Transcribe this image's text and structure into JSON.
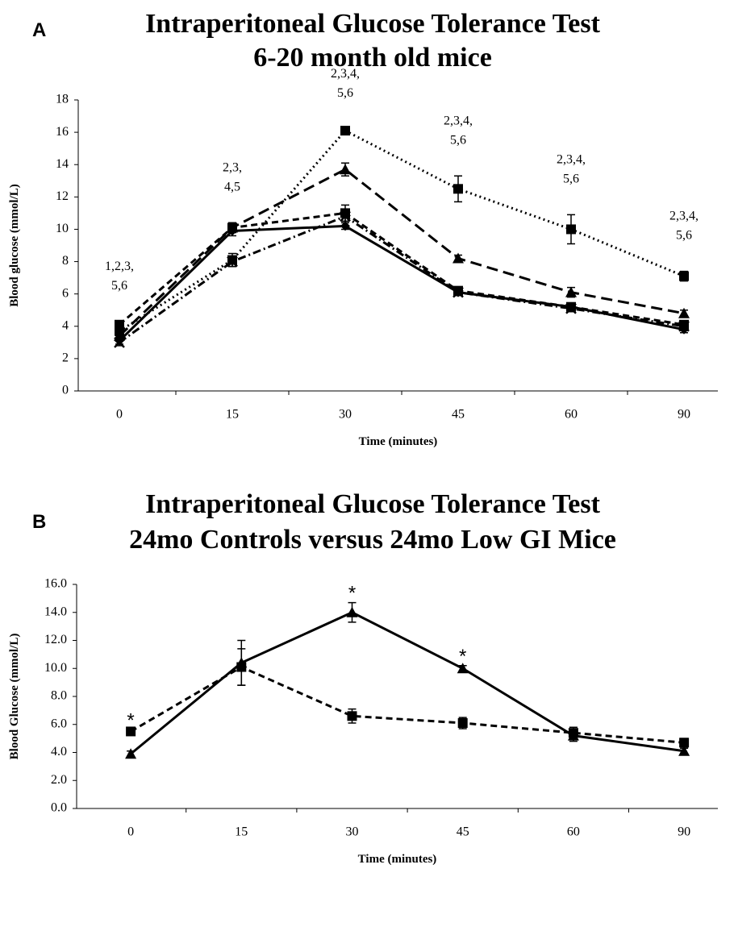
{
  "chart_data": [
    {
      "type": "line",
      "panel_label": "A",
      "title": "Intraperitoneal Glucose Tolerance Test",
      "subtitle": "6-20 month old mice",
      "x_label": "Time (minutes)",
      "y_label": "Blood glucose (mmol/L)",
      "categories": [
        "0",
        "15",
        "30",
        "45",
        "60",
        "90"
      ],
      "ylim": [
        0,
        18
      ],
      "yticks": [
        0,
        2,
        4,
        6,
        8,
        10,
        12,
        14,
        16,
        18
      ],
      "series": [
        {
          "color": "#000000",
          "line_style": "dotted",
          "marker": "square",
          "values": [
            3.7,
            8.1,
            16.1,
            12.5,
            10.0,
            7.1
          ],
          "errors": [
            0.3,
            0.4,
            0.1,
            0.8,
            0.9,
            0.3
          ]
        },
        {
          "color": "#000000",
          "line_style": "long-dash",
          "marker": "triangle",
          "values": [
            3.4,
            10.1,
            13.7,
            8.2,
            6.1,
            4.8
          ],
          "errors": [
            0.2,
            0.3,
            0.4,
            0.2,
            0.3,
            0.2
          ]
        },
        {
          "color": "#000000",
          "line_style": "dash",
          "marker": "square",
          "values": [
            4.1,
            10.1,
            11.0,
            6.2,
            5.2,
            4.1
          ],
          "errors": [
            0.2,
            0.3,
            0.5,
            0.2,
            0.2,
            0.2
          ]
        },
        {
          "color": "#000000",
          "line_style": "dash-dot",
          "marker": "x",
          "values": [
            3.0,
            8.0,
            10.8,
            6.1,
            5.1,
            4.0
          ],
          "errors": [
            0.2,
            0.3,
            0.3,
            0.2,
            0.2,
            0.2
          ]
        },
        {
          "color": "#000000",
          "line_style": "solid",
          "marker": "diamond",
          "values": [
            3.1,
            9.9,
            10.2,
            6.1,
            5.2,
            3.8
          ],
          "errors": [
            0.2,
            0.3,
            0.2,
            0.2,
            0.2,
            0.2
          ]
        }
      ],
      "annotations": [
        [
          "1,2,3,",
          "5,6"
        ],
        [
          "2,3,",
          "4,5"
        ],
        [
          "2,3,4,",
          "5,6"
        ],
        [
          "2,3,4,",
          "5,6"
        ],
        [
          "2,3,4,",
          "5,6"
        ],
        [
          "2,3,4,",
          "5,6"
        ]
      ]
    },
    {
      "type": "line",
      "panel_label": "B",
      "title": "Intraperitoneal Glucose Tolerance Test",
      "subtitle": "24mo Controls versus 24mo Low GI Mice",
      "x_label": "Time (minutes)",
      "y_label": "Blood Glucose (mmol/L)",
      "categories": [
        "0",
        "15",
        "30",
        "45",
        "60",
        "90"
      ],
      "ylim": [
        0,
        16
      ],
      "yticks": [
        {
          "value": 0,
          "label": "0.0"
        },
        {
          "value": 2,
          "label": "2.0"
        },
        {
          "value": 4,
          "label": "4.0"
        },
        {
          "value": 6,
          "label": "6.0"
        },
        {
          "value": 8,
          "label": "8.0"
        },
        {
          "value": 10,
          "label": "10.0"
        },
        {
          "value": 12,
          "label": "12.0"
        },
        {
          "value": 14,
          "label": "14.0"
        },
        {
          "value": 16,
          "label": "16.0"
        }
      ],
      "series": [
        {
          "color": "#000000",
          "line_style": "dash",
          "marker": "square",
          "values": [
            5.5,
            10.1,
            6.6,
            6.1,
            5.4,
            4.7
          ],
          "errors": [
            0.1,
            1.3,
            0.5,
            0.4,
            0.4,
            0.3
          ]
        },
        {
          "color": "#000000",
          "line_style": "solid",
          "marker": "triangle",
          "values": [
            3.9,
            10.4,
            14.0,
            10.0,
            5.2,
            4.1
          ],
          "errors": [
            0.2,
            1.6,
            0.7,
            0.2,
            0.4,
            0.2
          ]
        }
      ],
      "annotations": [
        [
          "*"
        ],
        null,
        [
          "*"
        ],
        [
          "*"
        ],
        null,
        null
      ]
    }
  ]
}
